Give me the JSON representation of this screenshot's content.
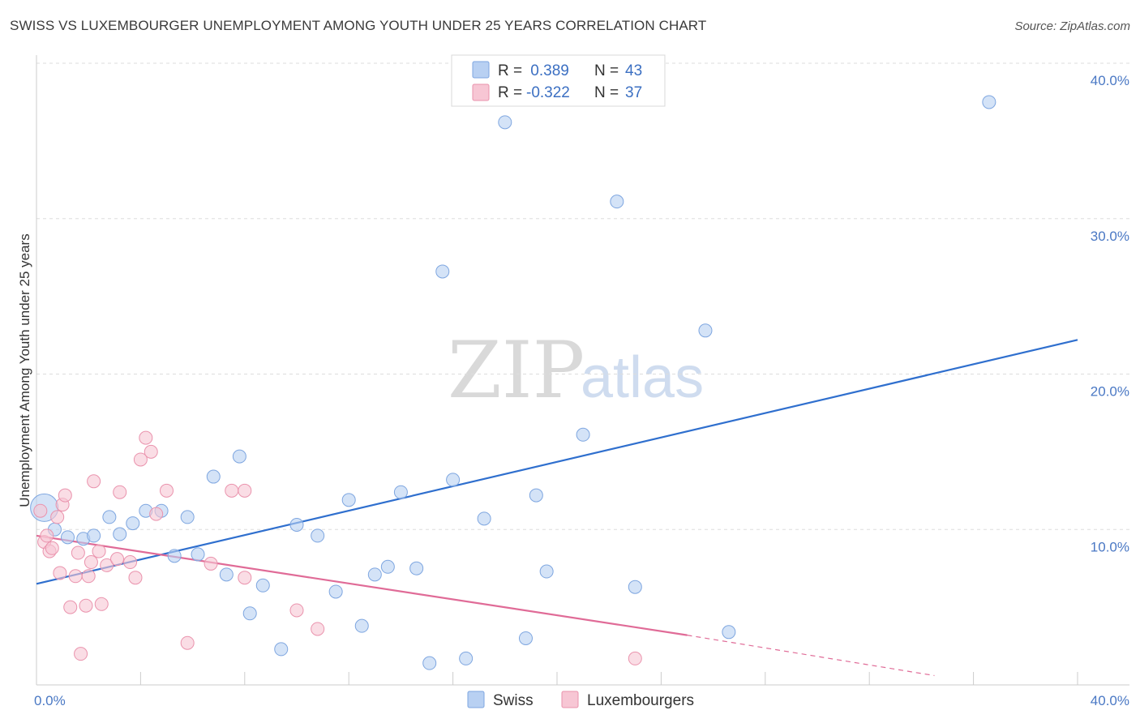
{
  "title": "SWISS VS LUXEMBOURGER UNEMPLOYMENT AMONG YOUTH UNDER 25 YEARS CORRELATION CHART",
  "source": "Source: ZipAtlas.com",
  "watermark": {
    "zip": "ZIP",
    "atlas": "atlas"
  },
  "colors": {
    "swiss_fill": "#b8d0f2",
    "swiss_stroke": "#7ea6e0",
    "swiss_line": "#2f6fce",
    "lux_fill": "#f7c6d4",
    "lux_stroke": "#ea93ad",
    "lux_line": "#e06b97",
    "grid": "#dddddd",
    "axis": "#cccccc"
  },
  "legend": {
    "rows": [
      {
        "key": "swiss",
        "r_label": "R = ",
        "r_value": " 0.389",
        "n_label": "N = ",
        "n_value": "43"
      },
      {
        "key": "lux",
        "r_label": "R = ",
        "r_value": "-0.322",
        "n_label": "N = ",
        "n_value": "37"
      }
    ]
  },
  "bottom_legend": [
    {
      "key": "swiss",
      "label": "Swiss"
    },
    {
      "key": "lux",
      "label": "Luxembourgers"
    }
  ],
  "chart_data": {
    "type": "scatter",
    "title": "SWISS VS LUXEMBOURGER UNEMPLOYMENT AMONG YOUTH UNDER 25 YEARS CORRELATION CHART",
    "xlabel": "",
    "ylabel": "Unemployment Among Youth under 25 years",
    "xlim": [
      0,
      40
    ],
    "ylim": [
      0,
      40
    ],
    "x_tick_labels": [
      "0.0%",
      "40.0%"
    ],
    "y_ticks": [
      10,
      20,
      30,
      40
    ],
    "y_tick_labels": [
      "10.0%",
      "20.0%",
      "30.0%",
      "40.0%"
    ],
    "grid": true,
    "series": [
      {
        "name": "Swiss",
        "r": 0.389,
        "n": 43,
        "trend": {
          "x0": 0,
          "y0": 6.5,
          "x1": 40,
          "y1": 22.2
        },
        "points": [
          {
            "x": 0.3,
            "y": 11.4,
            "big": true
          },
          {
            "x": 0.7,
            "y": 10.0
          },
          {
            "x": 1.2,
            "y": 9.5
          },
          {
            "x": 1.8,
            "y": 9.4
          },
          {
            "x": 2.2,
            "y": 9.6
          },
          {
            "x": 2.8,
            "y": 10.8
          },
          {
            "x": 3.2,
            "y": 9.7
          },
          {
            "x": 3.7,
            "y": 10.4
          },
          {
            "x": 4.2,
            "y": 11.2
          },
          {
            "x": 4.8,
            "y": 11.2
          },
          {
            "x": 5.3,
            "y": 8.3
          },
          {
            "x": 5.8,
            "y": 10.8
          },
          {
            "x": 6.2,
            "y": 8.4
          },
          {
            "x": 6.8,
            "y": 13.4
          },
          {
            "x": 7.3,
            "y": 7.1
          },
          {
            "x": 7.8,
            "y": 14.7
          },
          {
            "x": 8.2,
            "y": 4.6
          },
          {
            "x": 8.7,
            "y": 6.4
          },
          {
            "x": 9.4,
            "y": 2.3
          },
          {
            "x": 10.0,
            "y": 10.3
          },
          {
            "x": 10.8,
            "y": 9.6
          },
          {
            "x": 11.5,
            "y": 6.0
          },
          {
            "x": 12.0,
            "y": 11.9
          },
          {
            "x": 12.5,
            "y": 3.8
          },
          {
            "x": 13.0,
            "y": 7.1
          },
          {
            "x": 13.5,
            "y": 7.6
          },
          {
            "x": 14.0,
            "y": 12.4
          },
          {
            "x": 14.6,
            "y": 7.5
          },
          {
            "x": 15.1,
            "y": 1.4
          },
          {
            "x": 15.6,
            "y": 26.6
          },
          {
            "x": 16.0,
            "y": 13.2
          },
          {
            "x": 16.5,
            "y": 1.7
          },
          {
            "x": 17.2,
            "y": 10.7
          },
          {
            "x": 18.0,
            "y": 36.2
          },
          {
            "x": 18.8,
            "y": 3.0
          },
          {
            "x": 19.2,
            "y": 12.2
          },
          {
            "x": 19.6,
            "y": 7.3
          },
          {
            "x": 21.0,
            "y": 16.1
          },
          {
            "x": 22.3,
            "y": 31.1
          },
          {
            "x": 23.0,
            "y": 6.3
          },
          {
            "x": 25.7,
            "y": 22.8
          },
          {
            "x": 26.6,
            "y": 3.4
          },
          {
            "x": 36.6,
            "y": 37.5
          }
        ]
      },
      {
        "name": "Luxembourgers",
        "r": -0.322,
        "n": 37,
        "trend": {
          "x0": 0,
          "y0": 9.6,
          "x1": 25,
          "y1": 3.2,
          "dash_x1": 34.5,
          "dash_y1": 0.6
        },
        "points": [
          {
            "x": 0.15,
            "y": 11.2
          },
          {
            "x": 0.3,
            "y": 9.2
          },
          {
            "x": 0.4,
            "y": 9.6
          },
          {
            "x": 0.5,
            "y": 8.6
          },
          {
            "x": 0.6,
            "y": 8.8
          },
          {
            "x": 0.8,
            "y": 10.8
          },
          {
            "x": 0.9,
            "y": 7.2
          },
          {
            "x": 1.0,
            "y": 11.6
          },
          {
            "x": 1.1,
            "y": 12.2
          },
          {
            "x": 1.3,
            "y": 5.0
          },
          {
            "x": 1.5,
            "y": 7.0
          },
          {
            "x": 1.6,
            "y": 8.5
          },
          {
            "x": 1.7,
            "y": 2.0
          },
          {
            "x": 1.9,
            "y": 5.1
          },
          {
            "x": 2.0,
            "y": 7.0
          },
          {
            "x": 2.1,
            "y": 7.9
          },
          {
            "x": 2.2,
            "y": 13.1
          },
          {
            "x": 2.4,
            "y": 8.6
          },
          {
            "x": 2.5,
            "y": 5.2
          },
          {
            "x": 2.7,
            "y": 7.7
          },
          {
            "x": 3.1,
            "y": 8.1
          },
          {
            "x": 3.2,
            "y": 12.4
          },
          {
            "x": 3.6,
            "y": 7.9
          },
          {
            "x": 3.8,
            "y": 6.9
          },
          {
            "x": 4.0,
            "y": 14.5
          },
          {
            "x": 4.2,
            "y": 15.9
          },
          {
            "x": 4.4,
            "y": 15.0
          },
          {
            "x": 4.6,
            "y": 11.0
          },
          {
            "x": 5.0,
            "y": 12.5
          },
          {
            "x": 5.8,
            "y": 2.7
          },
          {
            "x": 6.7,
            "y": 7.8
          },
          {
            "x": 7.5,
            "y": 12.5
          },
          {
            "x": 8.0,
            "y": 12.5
          },
          {
            "x": 8.0,
            "y": 6.9
          },
          {
            "x": 10.0,
            "y": 4.8
          },
          {
            "x": 10.8,
            "y": 3.6
          },
          {
            "x": 23.0,
            "y": 1.7
          }
        ]
      }
    ]
  }
}
